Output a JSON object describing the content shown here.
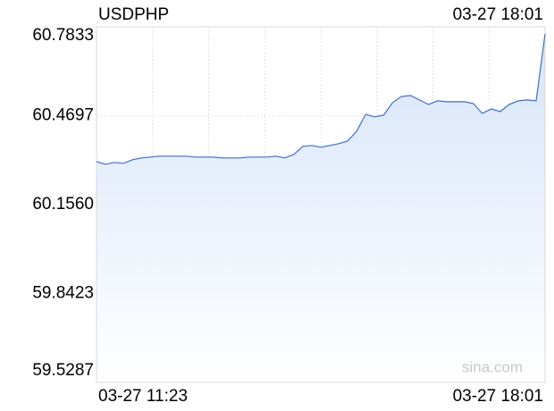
{
  "chart_data": {
    "type": "line",
    "title": "USDPHP",
    "time_label": "03-27 18:01",
    "x_labels": [
      "03-27 11:23",
      "03-27 18:01"
    ],
    "watermark": "sina.com",
    "values": [
      60.308,
      60.2985,
      60.3048,
      60.3017,
      60.3142,
      60.3205,
      60.3237,
      60.3268,
      60.3268,
      60.3268,
      60.3268,
      60.3237,
      60.3237,
      60.3237,
      60.3205,
      60.3205,
      60.3205,
      60.3237,
      60.3237,
      60.3237,
      60.3268,
      60.3205,
      60.3331,
      60.3615,
      60.3646,
      60.3583,
      60.3646,
      60.3709,
      60.3804,
      60.415,
      60.4748,
      60.4654,
      60.4716,
      60.5157,
      60.5378,
      60.5409,
      60.5252,
      60.5094,
      60.522,
      60.5189,
      60.5189,
      60.5189,
      60.5126,
      60.4779,
      60.4937,
      60.4842,
      60.5094,
      60.522,
      60.5252,
      60.522,
      60.7581
    ],
    "color": "#3f6fc4",
    "fill_color": "#dce8fb",
    "reference": 60.156,
    "up_color": "#109010",
    "down_color": "#e01010",
    "ylim": [
      59.5287,
      60.7833
    ],
    "yticks": [
      59.5287,
      59.8423,
      {
        "value": 60.156,
        "label": "60.1560"
      },
      60.4697,
      60.7833
    ]
  }
}
